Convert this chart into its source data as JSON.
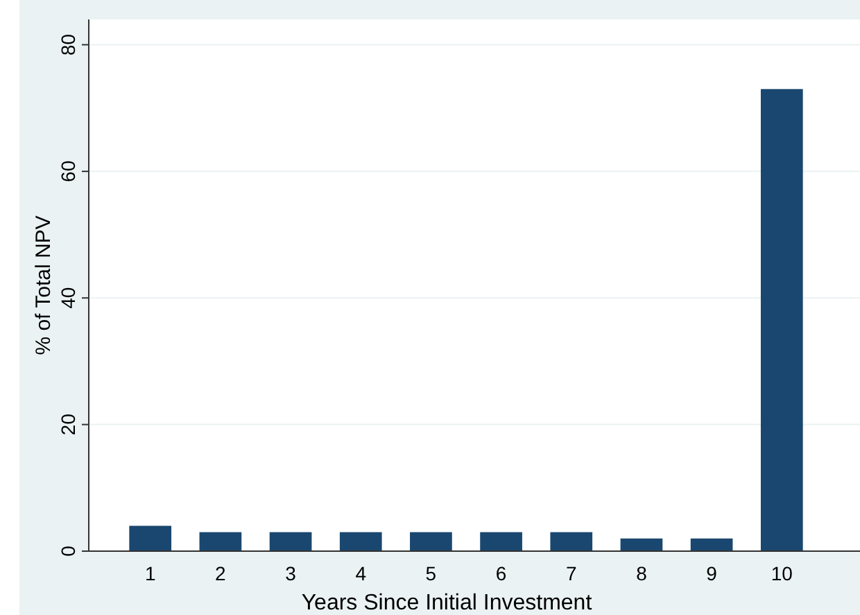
{
  "chart_data": {
    "type": "bar",
    "xlabel": "Years Since Initial Investment",
    "ylabel": "% of Total NPV",
    "categories": [
      "1",
      "2",
      "3",
      "4",
      "5",
      "6",
      "7",
      "8",
      "9",
      "10"
    ],
    "values": [
      4,
      3,
      3,
      3,
      3,
      3,
      3,
      2,
      2,
      73
    ],
    "color": "#1a476f",
    "ylim": [
      0,
      84
    ],
    "yticks": [
      0,
      20,
      40,
      60,
      80
    ],
    "grid": "y"
  }
}
